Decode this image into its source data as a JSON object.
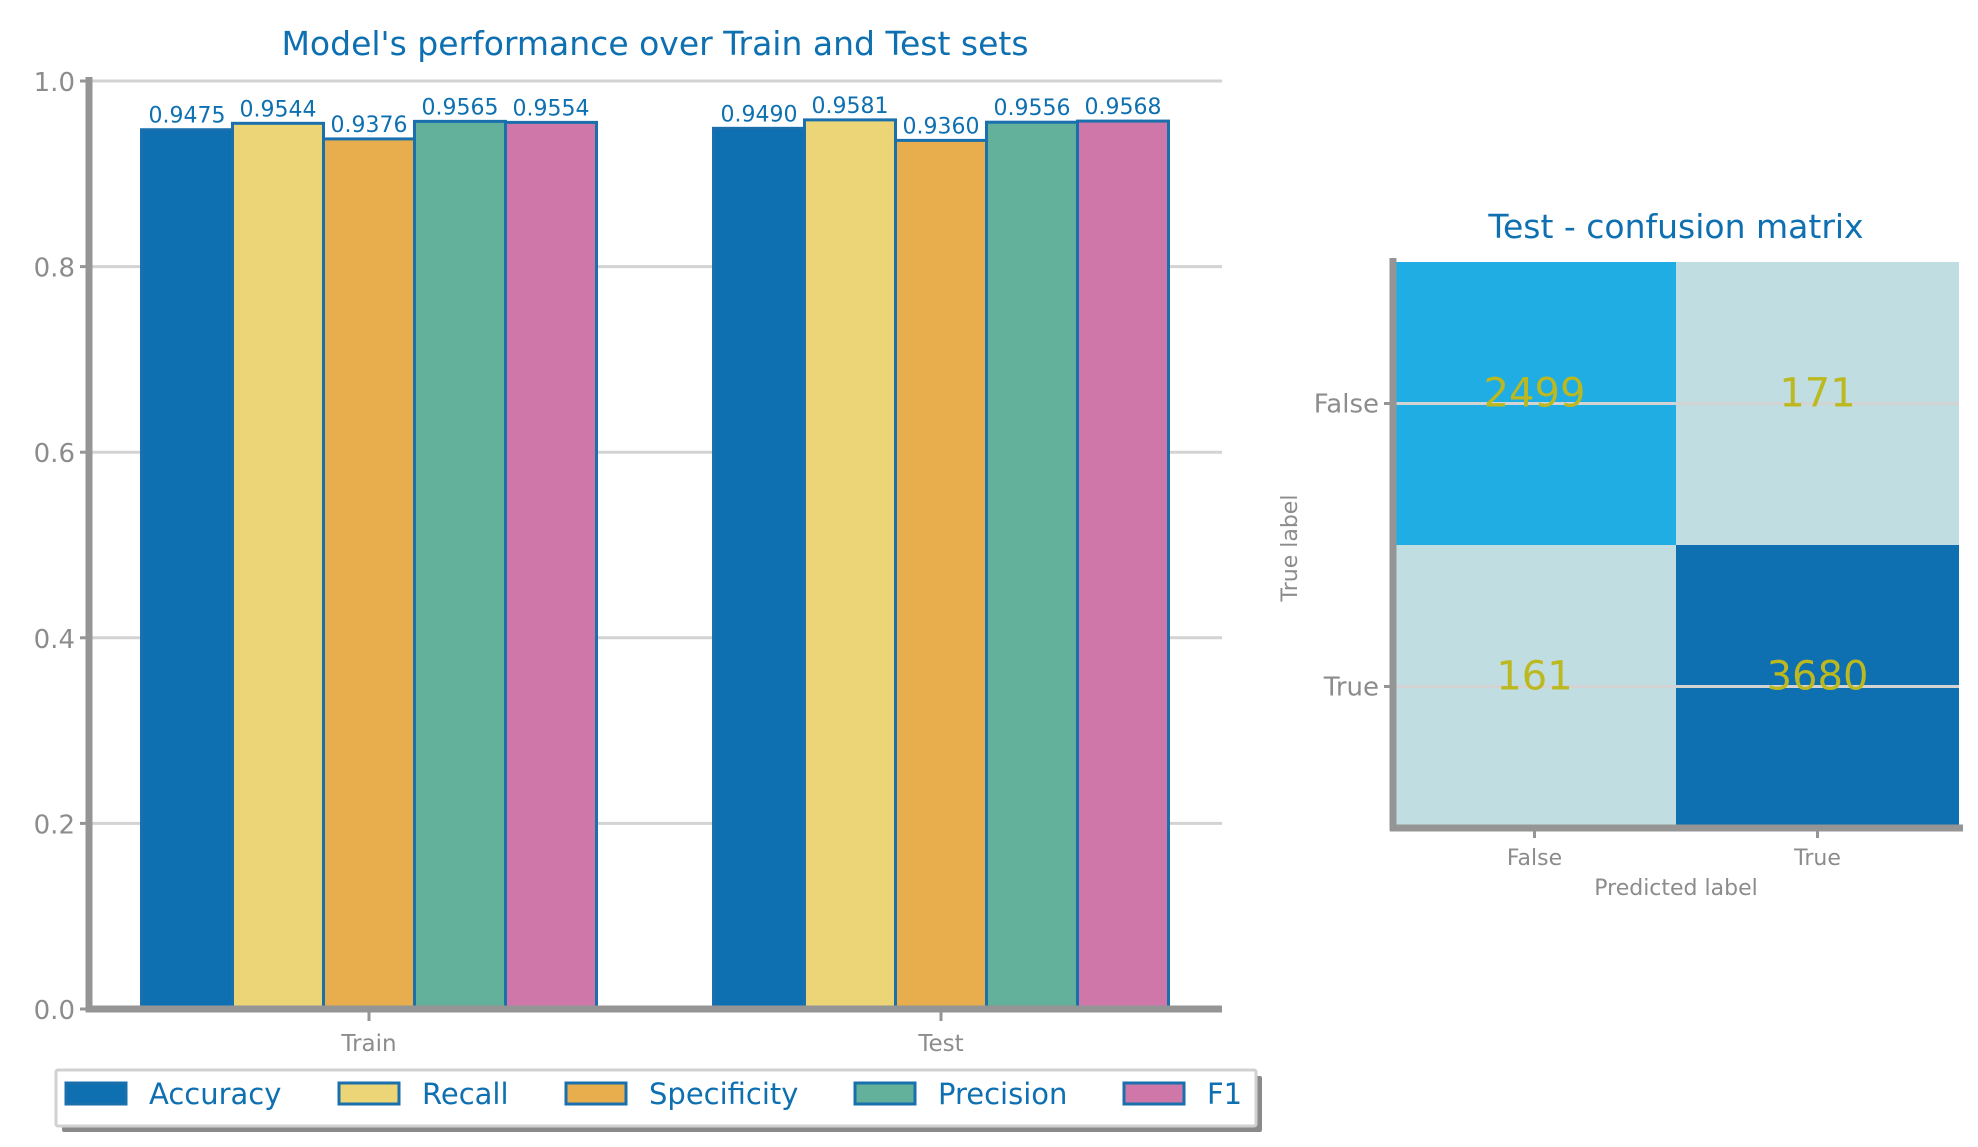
{
  "colors": {
    "title": "#0e6fb1",
    "axis": "#959595",
    "tick_label": "#8c8c8c",
    "grid": "#d3d3d3",
    "bar_edge": "#1a6fad",
    "bar_label": "#0e6fb1",
    "legend_text": "#0e6fb1",
    "cm_text": "#bcb820"
  },
  "chart_data": [
    {
      "type": "bar",
      "title": "Model's performance over Train and Test sets",
      "xlabel": "",
      "ylabel": "",
      "categories": [
        "Train",
        "Test"
      ],
      "series": [
        {
          "name": "Accuracy",
          "color": "#0e6fb1",
          "values": [
            0.9475,
            0.949
          ],
          "labels": [
            "0.9475",
            "0.9490"
          ]
        },
        {
          "name": "Recall",
          "color": "#ebd577",
          "values": [
            0.9544,
            0.9581
          ],
          "labels": [
            "0.9544",
            "0.9581"
          ]
        },
        {
          "name": "Specificity",
          "color": "#e8ad4c",
          "values": [
            0.9376,
            0.936
          ],
          "labels": [
            "0.9376",
            "0.9360"
          ]
        },
        {
          "name": "Precision",
          "color": "#63b09b",
          "values": [
            0.9565,
            0.9556
          ],
          "labels": [
            "0.9565",
            "0.9556"
          ]
        },
        {
          "name": "F1",
          "color": "#d077aa",
          "values": [
            0.9554,
            0.9568
          ],
          "labels": [
            "0.9554",
            "0.9568"
          ]
        }
      ],
      "ylim": [
        0.0,
        1.0
      ],
      "yticks": [
        "0.0",
        "0.2",
        "0.4",
        "0.6",
        "0.8",
        "1.0"
      ],
      "grid": true,
      "legend_position": "bottom"
    },
    {
      "type": "heatmap",
      "title": "Test - confusion matrix",
      "xlabel": "Predicted label",
      "ylabel": "True label",
      "x_categories": [
        "False",
        "True"
      ],
      "y_categories": [
        "False",
        "True"
      ],
      "values": [
        [
          2499,
          171
        ],
        [
          161,
          3680
        ]
      ],
      "cell_colors": [
        [
          "#1fade3",
          "#c0dee1"
        ],
        [
          "#c0dee1",
          "#0e6fb1"
        ]
      ],
      "grid": true
    }
  ]
}
